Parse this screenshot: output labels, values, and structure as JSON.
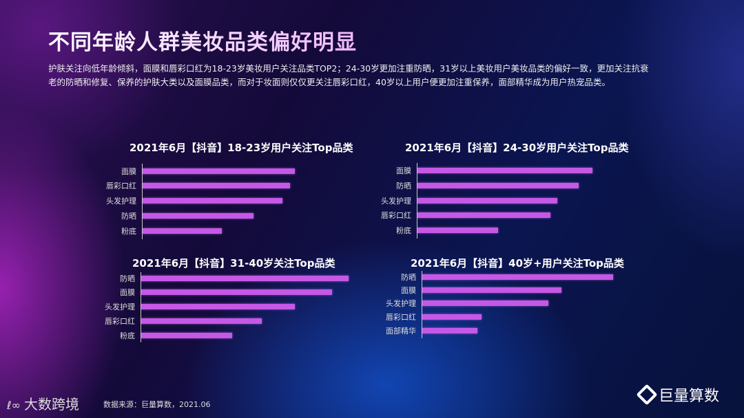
{
  "title": "不同年龄人群美妆品类偏好明显",
  "description": "护肤关注向低年龄倾斜，面膜和唇彩口红为18-23岁美妆用户关注品类TOP2；24-30岁更加注重防晒，31岁以上美妆用户美妆品类的偏好一致，更加关注抗衰老的防晒和修复、保养的护肤大类以及面膜品类，而对于妆面则仅仅更关注唇彩口红，40岁以上用户便更加注重保养，面部精华成为用户热宠品类。",
  "chart_data": [
    {
      "type": "bar",
      "orientation": "horizontal",
      "title": "2021年6月【抖音】18-23岁用户关注Top品类",
      "categories": [
        "面膜",
        "唇彩口红",
        "头发护理",
        "防晒",
        "粉底"
      ],
      "values": [
        100,
        97,
        92,
        73,
        52
      ],
      "color": "#c558e6"
    },
    {
      "type": "bar",
      "orientation": "horizontal",
      "title": "2021年6月【抖音】24-30岁用户关注Top品类",
      "categories": [
        "面膜",
        "防晒",
        "头发护理",
        "唇彩口红",
        "粉底"
      ],
      "values": [
        100,
        92,
        80,
        76,
        46
      ],
      "color": "#c558e6"
    },
    {
      "type": "bar",
      "orientation": "horizontal",
      "title": "2021年6月【抖音】31-40岁关注Top品类",
      "categories": [
        "防晒",
        "面膜",
        "头发护理",
        "唇彩口红",
        "粉底"
      ],
      "values": [
        100,
        92,
        74,
        58,
        44
      ],
      "color": "#c558e6"
    },
    {
      "type": "bar",
      "orientation": "horizontal",
      "title": "2021年6月【抖音】40岁+用户关注Top品类",
      "categories": [
        "防晒",
        "面膜",
        "头发护理",
        "唇彩口红",
        "面部精华"
      ],
      "values": [
        100,
        73,
        66,
        31,
        29
      ],
      "color": "#c558e6"
    }
  ],
  "footer": {
    "logo": "大数跨境",
    "source": "数据来源：巨量算数，2021.06",
    "brand": "巨量算数"
  }
}
